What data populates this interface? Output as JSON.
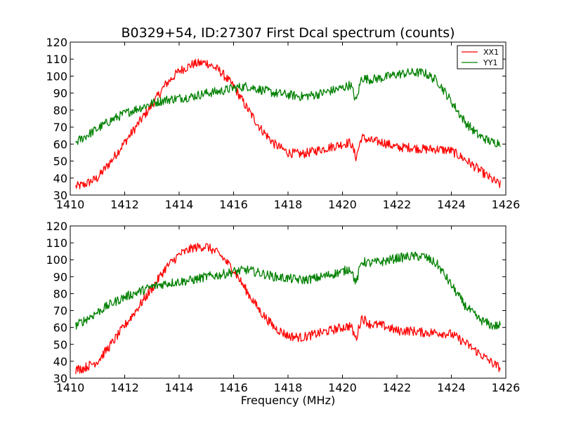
{
  "chart_data": [
    {
      "type": "line",
      "title": "B0329+54, ID:27307 First Dcal spectrum (counts)",
      "xlabel": "",
      "ylabel": "",
      "xlim": [
        1410,
        1426
      ],
      "ylim": [
        30,
        120
      ],
      "xticks": [
        1410,
        1412,
        1414,
        1416,
        1418,
        1420,
        1422,
        1424,
        1426
      ],
      "yticks": [
        30,
        40,
        50,
        60,
        70,
        80,
        90,
        100,
        110,
        120
      ],
      "grid": false,
      "legend": "top-right",
      "series": [
        {
          "name": "XX1",
          "color": "#ff0000",
          "x": [
            1410.2,
            1410.5,
            1411.0,
            1411.5,
            1412.0,
            1412.5,
            1413.0,
            1413.5,
            1414.0,
            1414.5,
            1415.0,
            1415.5,
            1416.0,
            1416.5,
            1417.0,
            1417.5,
            1418.0,
            1418.5,
            1419.0,
            1419.5,
            1420.0,
            1420.3,
            1420.5,
            1420.7,
            1421.0,
            1421.5,
            1422.0,
            1422.5,
            1423.0,
            1423.5,
            1424.0,
            1424.5,
            1425.0,
            1425.5,
            1425.8
          ],
          "y": [
            35,
            36,
            40,
            50,
            61,
            72,
            83,
            95,
            103,
            107,
            108,
            103,
            94,
            81,
            69,
            60,
            55,
            54,
            56,
            58,
            60,
            61,
            52,
            64,
            62,
            61,
            58,
            58,
            57,
            57,
            56,
            51,
            45,
            39,
            36
          ]
        },
        {
          "name": "YY1",
          "color": "#008000",
          "x": [
            1410.2,
            1410.5,
            1411.0,
            1411.5,
            1412.0,
            1412.5,
            1413.0,
            1413.5,
            1414.0,
            1414.5,
            1415.0,
            1415.5,
            1416.0,
            1416.5,
            1417.0,
            1417.5,
            1418.0,
            1418.5,
            1419.0,
            1419.5,
            1420.0,
            1420.3,
            1420.5,
            1420.7,
            1421.0,
            1421.5,
            1422.0,
            1422.5,
            1423.0,
            1423.5,
            1424.0,
            1424.5,
            1425.0,
            1425.5,
            1425.8
          ],
          "y": [
            61,
            64,
            69,
            74,
            78,
            81,
            84,
            86,
            87,
            88,
            90,
            91,
            93,
            94,
            92,
            90,
            89,
            88,
            89,
            91,
            93,
            95,
            85,
            99,
            98,
            99,
            101,
            102,
            102,
            97,
            85,
            73,
            65,
            61,
            61
          ]
        }
      ]
    },
    {
      "type": "line",
      "title": "",
      "xlabel": "Frequency (MHz)",
      "ylabel": "",
      "xlim": [
        1410,
        1426
      ],
      "ylim": [
        30,
        120
      ],
      "xticks": [
        1410,
        1412,
        1414,
        1416,
        1418,
        1420,
        1422,
        1424,
        1426
      ],
      "yticks": [
        30,
        40,
        50,
        60,
        70,
        80,
        90,
        100,
        110,
        120
      ],
      "grid": false,
      "series": [
        {
          "color": "#ff0000",
          "x": [
            1410.2,
            1410.5,
            1411.0,
            1411.5,
            1412.0,
            1412.5,
            1413.0,
            1413.5,
            1414.0,
            1414.5,
            1415.0,
            1415.5,
            1416.0,
            1416.5,
            1417.0,
            1417.5,
            1418.0,
            1418.5,
            1419.0,
            1419.5,
            1420.0,
            1420.3,
            1420.5,
            1420.7,
            1421.0,
            1421.5,
            1422.0,
            1422.5,
            1423.0,
            1423.5,
            1424.0,
            1424.5,
            1425.0,
            1425.5,
            1425.8
          ],
          "y": [
            35,
            36,
            40,
            50,
            61,
            72,
            83,
            95,
            103,
            107,
            108,
            103,
            94,
            81,
            69,
            60,
            55,
            54,
            56,
            58,
            60,
            61,
            53,
            66,
            62,
            61,
            58,
            58,
            57,
            57,
            56,
            51,
            45,
            39,
            36
          ]
        },
        {
          "color": "#008000",
          "x": [
            1410.2,
            1410.5,
            1411.0,
            1411.5,
            1412.0,
            1412.5,
            1413.0,
            1413.5,
            1414.0,
            1414.5,
            1415.0,
            1415.5,
            1416.0,
            1416.5,
            1417.0,
            1417.5,
            1418.0,
            1418.5,
            1419.0,
            1419.5,
            1420.0,
            1420.3,
            1420.5,
            1420.7,
            1421.0,
            1421.5,
            1422.0,
            1422.5,
            1423.0,
            1423.5,
            1424.0,
            1424.5,
            1425.0,
            1425.5,
            1425.8
          ],
          "y": [
            61,
            64,
            69,
            74,
            78,
            81,
            84,
            86,
            87,
            88,
            90,
            91,
            93,
            94,
            92,
            90,
            89,
            88,
            89,
            91,
            93,
            95,
            86,
            99,
            98,
            99,
            101,
            102,
            102,
            97,
            85,
            73,
            65,
            61,
            61
          ]
        }
      ]
    }
  ]
}
